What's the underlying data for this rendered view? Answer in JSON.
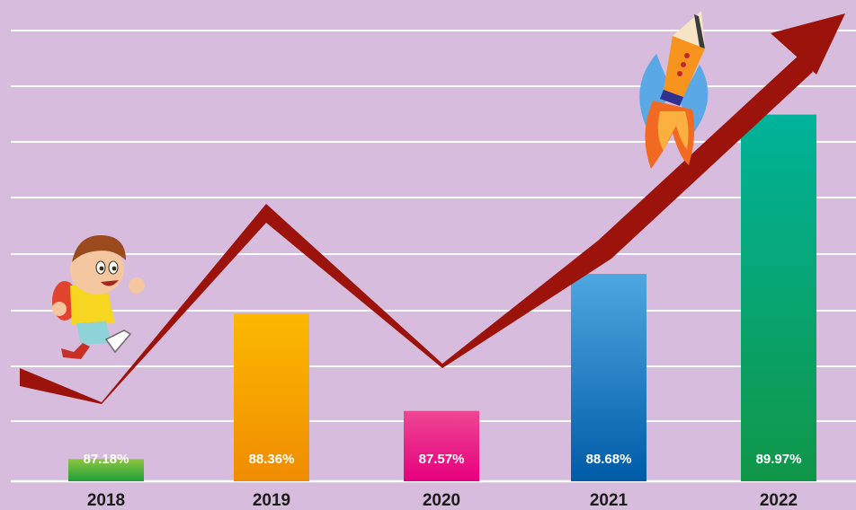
{
  "chart_data": {
    "type": "bar",
    "categories": [
      "2018",
      "2019",
      "2020",
      "2021",
      "2022"
    ],
    "values": [
      87.18,
      88.36,
      87.57,
      88.68,
      89.97
    ],
    "data_labels": [
      "87.18%",
      "88.36%",
      "87.57%",
      "88.68%",
      "89.97%"
    ],
    "ylim": [
      87.0,
      90.2
    ],
    "title": "",
    "xlabel": "",
    "ylabel": "",
    "grid": true,
    "legend": "none",
    "overlay": "upward trend arrow",
    "decorations": [
      "running-boy-illustration",
      "pencil-rocket-illustration"
    ],
    "colors": {
      "background": "#d8bcdd",
      "gridline": "#ffffff",
      "arrow": "#9b130b",
      "bars": [
        [
          "#8cc63f",
          "#1f9d3a"
        ],
        [
          "#fbb900",
          "#f08c00"
        ],
        [
          "#ee4693",
          "#e6007e"
        ],
        [
          "#4ea7e0",
          "#005ba7"
        ],
        [
          "#00b39a",
          "#109648"
        ]
      ]
    }
  }
}
